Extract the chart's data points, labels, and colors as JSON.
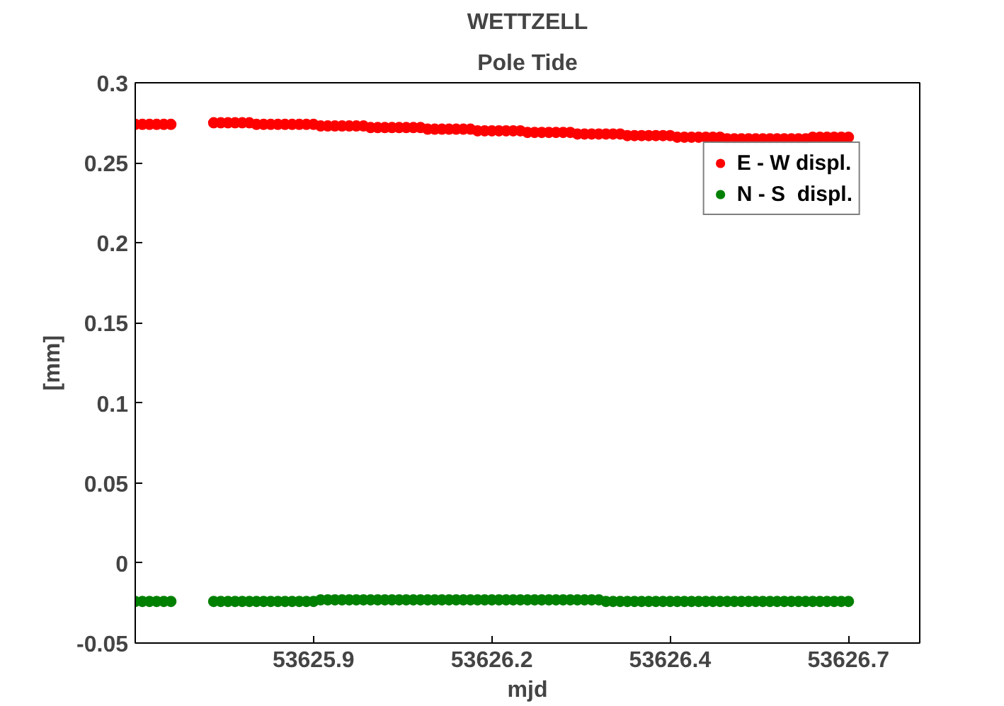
{
  "chart_data": {
    "type": "scatter",
    "title": "WETTZELL",
    "subtitle": "Pole Tide",
    "xlabel": "mjd",
    "ylabel": "[mm]",
    "x": [
      53625.7,
      53625.71,
      53625.72,
      53625.73,
      53625.74,
      53625.75,
      53625.81,
      53625.82,
      53625.83,
      53625.84,
      53625.85,
      53625.86,
      53625.87,
      53625.88,
      53625.89,
      53625.9,
      53625.91,
      53625.92,
      53625.93,
      53625.94,
      53625.95,
      53625.96,
      53625.97,
      53625.98,
      53625.99,
      53626.0,
      53626.01,
      53626.02,
      53626.03,
      53626.04,
      53626.05,
      53626.06,
      53626.07,
      53626.08,
      53626.09,
      53626.1,
      53626.11,
      53626.12,
      53626.13,
      53626.14,
      53626.15,
      53626.16,
      53626.17,
      53626.18,
      53626.19,
      53626.2,
      53626.21,
      53626.22,
      53626.23,
      53626.24,
      53626.25,
      53626.26,
      53626.27,
      53626.28,
      53626.29,
      53626.3,
      53626.31,
      53626.32,
      53626.33,
      53626.34,
      53626.35,
      53626.36,
      53626.37,
      53626.38,
      53626.39,
      53626.4,
      53626.41,
      53626.42,
      53626.43,
      53626.44,
      53626.45,
      53626.46,
      53626.47,
      53626.48,
      53626.49,
      53626.5,
      53626.51,
      53626.52,
      53626.53,
      53626.54,
      53626.55,
      53626.56,
      53626.57,
      53626.58,
      53626.59,
      53626.6,
      53626.61,
      53626.62,
      53626.63,
      53626.64,
      53626.65,
      53626.66,
      53626.67,
      53626.68,
      53626.69,
      53626.7
    ],
    "series": [
      {
        "name": "E - W displ.",
        "color": "#ff0000",
        "values": [
          0.274,
          0.274,
          0.274,
          0.274,
          0.274,
          0.274,
          0.275,
          0.275,
          0.275,
          0.275,
          0.275,
          0.275,
          0.274,
          0.274,
          0.274,
          0.274,
          0.274,
          0.274,
          0.274,
          0.274,
          0.274,
          0.273,
          0.273,
          0.273,
          0.273,
          0.273,
          0.273,
          0.273,
          0.272,
          0.272,
          0.272,
          0.272,
          0.272,
          0.272,
          0.272,
          0.272,
          0.271,
          0.271,
          0.271,
          0.271,
          0.271,
          0.271,
          0.271,
          0.27,
          0.27,
          0.27,
          0.27,
          0.27,
          0.27,
          0.27,
          0.269,
          0.269,
          0.269,
          0.269,
          0.269,
          0.269,
          0.269,
          0.268,
          0.268,
          0.268,
          0.268,
          0.268,
          0.268,
          0.268,
          0.267,
          0.267,
          0.267,
          0.267,
          0.267,
          0.267,
          0.267,
          0.266,
          0.266,
          0.266,
          0.266,
          0.266,
          0.266,
          0.266,
          0.265,
          0.265,
          0.265,
          0.265,
          0.265,
          0.265,
          0.265,
          0.265,
          0.265,
          0.265,
          0.265,
          0.265,
          0.266,
          0.266,
          0.266,
          0.266,
          0.266,
          0.266
        ]
      },
      {
        "name": "N - S  displ.",
        "color": "#008000",
        "values": [
          -0.024,
          -0.024,
          -0.024,
          -0.024,
          -0.024,
          -0.024,
          -0.024,
          -0.024,
          -0.024,
          -0.024,
          -0.024,
          -0.024,
          -0.024,
          -0.024,
          -0.024,
          -0.024,
          -0.024,
          -0.024,
          -0.024,
          -0.024,
          -0.024,
          -0.023,
          -0.023,
          -0.023,
          -0.023,
          -0.023,
          -0.023,
          -0.023,
          -0.023,
          -0.023,
          -0.023,
          -0.023,
          -0.023,
          -0.023,
          -0.023,
          -0.023,
          -0.023,
          -0.023,
          -0.023,
          -0.023,
          -0.023,
          -0.023,
          -0.023,
          -0.023,
          -0.023,
          -0.023,
          -0.023,
          -0.023,
          -0.023,
          -0.023,
          -0.023,
          -0.023,
          -0.023,
          -0.023,
          -0.023,
          -0.023,
          -0.023,
          -0.023,
          -0.023,
          -0.023,
          -0.023,
          -0.024,
          -0.024,
          -0.024,
          -0.024,
          -0.024,
          -0.024,
          -0.024,
          -0.024,
          -0.024,
          -0.024,
          -0.024,
          -0.024,
          -0.024,
          -0.024,
          -0.024,
          -0.024,
          -0.024,
          -0.024,
          -0.024,
          -0.024,
          -0.024,
          -0.024,
          -0.024,
          -0.024,
          -0.024,
          -0.024,
          -0.024,
          -0.024,
          -0.024,
          -0.024,
          -0.024,
          -0.024,
          -0.024,
          -0.024,
          -0.024
        ]
      }
    ],
    "xlim": [
      53625.7,
      53626.8
    ],
    "xticks": [
      {
        "value": 53625.95,
        "label": "53625.9"
      },
      53626.2,
      {
        "value": 53626.45,
        "label": "53626.4"
      },
      53626.7
    ],
    "ylim": [
      -0.05,
      0.3
    ],
    "yticks": [
      -0.05,
      0,
      0.05,
      0.1,
      0.15,
      0.2,
      0.25,
      0.3
    ],
    "grid": false,
    "legend": "top right",
    "marker": "circle"
  }
}
